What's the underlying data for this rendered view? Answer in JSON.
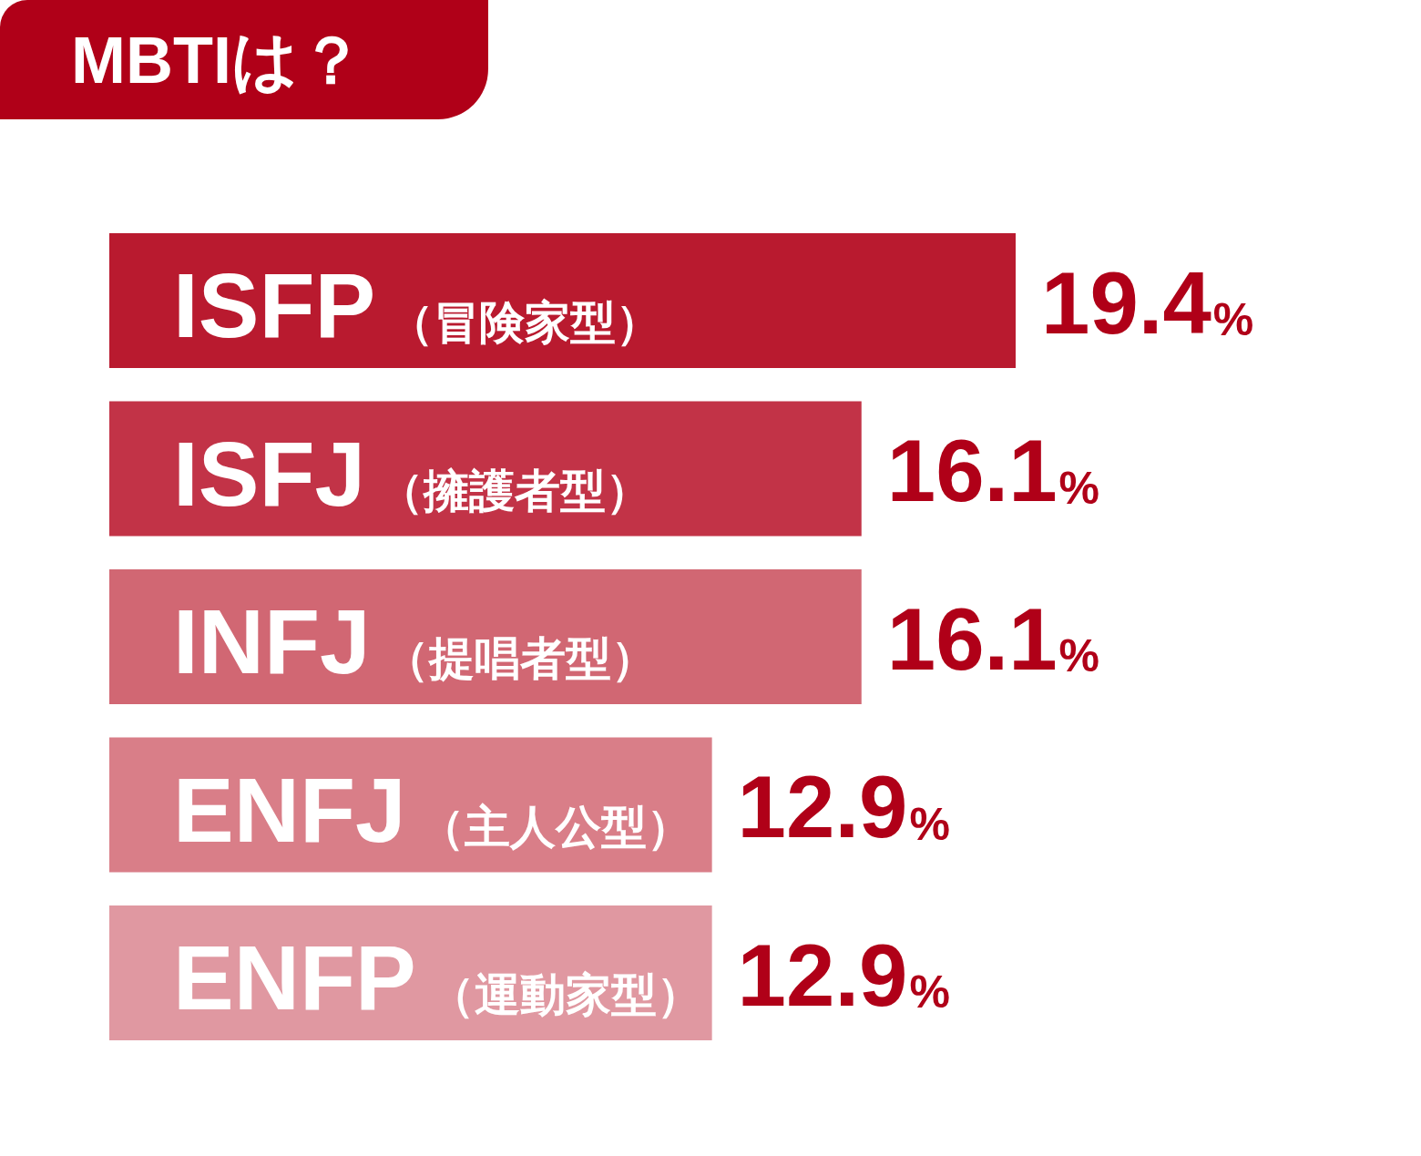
{
  "chart_data": {
    "type": "bar",
    "title": "MBTIは？",
    "orientation": "horizontal",
    "tick_labels": "y",
    "categories": [
      "ISFP（冒険家型）",
      "ISFJ（擁護者型）",
      "INFJ（提唱者型）",
      "ENFJ（主人公型）",
      "ENFP（運動家型）"
    ],
    "values": [
      19.4,
      16.1,
      16.1,
      12.9,
      12.9
    ],
    "colors": [
      "#b91a2f",
      "#c23347",
      "#d16773",
      "#d97e88",
      "#e098a1"
    ],
    "value_labels": [
      "19.4%",
      "16.1%",
      "16.1%",
      "12.9%",
      "12.9%"
    ]
  }
}
